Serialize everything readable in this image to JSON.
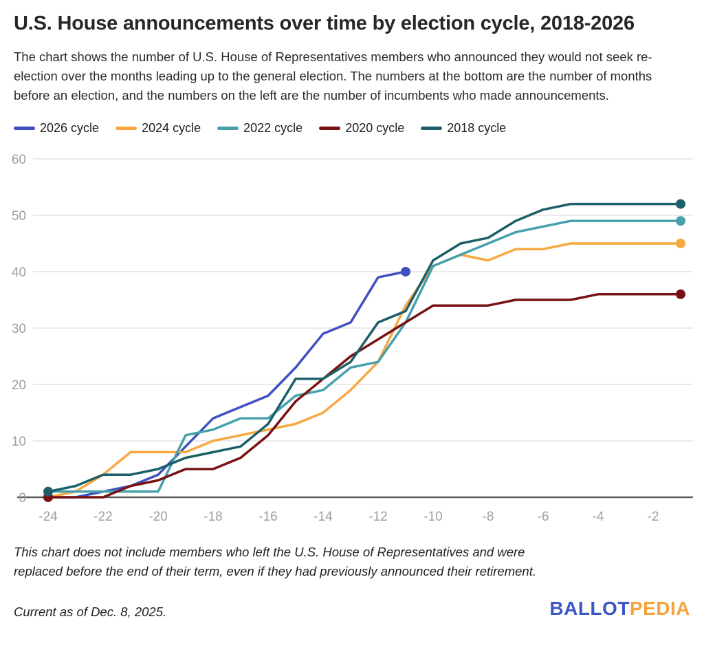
{
  "title": "U.S. House announcements over time by election cycle, 2018-2026",
  "subtitle": "The chart shows the number of U.S. House of Representatives members who announced they would not seek re-election over the months leading up to the general election. The numbers at the bottom are the number of months before an election, and the numbers on the left are the number of incumbents who made announcements.",
  "footnote": "This chart does not include members who left the U.S. House of Representatives and were replaced before the end of their term, even if they had previously announced their retirement.",
  "current_as_of": "Current as of Dec. 8, 2025.",
  "logo": {
    "ballot": "BALLOT",
    "pedia": "PEDIA",
    "ballot_color": "#3d56c6",
    "pedia_color": "#f6a33b"
  },
  "colors": {
    "grid_line": "#e4e4e4",
    "axis_line": "#5a5a5a",
    "tick_text": "#9e9e9e"
  },
  "chart_data": {
    "type": "line",
    "title": "U.S. House announcements over time by election cycle, 2018-2026",
    "xlabel": "",
    "ylabel": "",
    "grid": true,
    "legend_position": "top",
    "xlim": [
      -25,
      0
    ],
    "ylim": [
      0,
      60
    ],
    "x_ticks": [
      -24,
      -22,
      -20,
      -18,
      -16,
      -14,
      -12,
      -10,
      -8,
      -6,
      -4,
      -2
    ],
    "y_ticks": [
      0,
      10,
      20,
      30,
      40,
      50,
      60
    ],
    "series": [
      {
        "name": "2026 cycle",
        "color": "#3f51c1",
        "start_dot": false,
        "end_dot": true,
        "x": [
          -24,
          -23,
          -22,
          -21,
          -20,
          -19,
          -18,
          -17,
          -16,
          -15,
          -14,
          -13,
          -12,
          -11
        ],
        "values": [
          0,
          0,
          1,
          2,
          4,
          9,
          14,
          16,
          18,
          23,
          29,
          31,
          39,
          40
        ]
      },
      {
        "name": "2024 cycle",
        "color": "#f7a841",
        "start_dot": false,
        "end_dot": true,
        "x": [
          -24,
          -23,
          -22,
          -21,
          -20,
          -19,
          -18,
          -17,
          -16,
          -15,
          -14,
          -13,
          -12,
          -11,
          -10,
          -9,
          -8,
          -7,
          -6,
          -5,
          -4,
          -3,
          -2,
          -1
        ],
        "values": [
          0,
          1,
          4,
          8,
          8,
          8,
          10,
          11,
          12,
          13,
          15,
          19,
          24,
          34,
          41,
          43,
          42,
          44,
          44,
          45,
          45,
          45,
          45,
          45
        ]
      },
      {
        "name": "2022 cycle",
        "color": "#46a1aa",
        "start_dot": false,
        "end_dot": true,
        "x": [
          -24,
          -23,
          -22,
          -21,
          -20,
          -19,
          -18,
          -17,
          -16,
          -15,
          -14,
          -13,
          -12,
          -11,
          -10,
          -9,
          -8,
          -7,
          -6,
          -5,
          -4,
          -3,
          -2,
          -1
        ],
        "values": [
          1,
          1,
          1,
          1,
          1,
          11,
          12,
          14,
          14,
          18,
          19,
          23,
          24,
          31,
          41,
          43,
          45,
          47,
          48,
          49,
          49,
          49,
          49,
          49
        ]
      },
      {
        "name": "2020 cycle",
        "color": "#771114",
        "start_dot": true,
        "end_dot": true,
        "x": [
          -24,
          -23,
          -22,
          -21,
          -20,
          -19,
          -18,
          -17,
          -16,
          -15,
          -14,
          -13,
          -12,
          -11,
          -10,
          -9,
          -8,
          -7,
          -6,
          -5,
          -4,
          -3,
          -2,
          -1
        ],
        "values": [
          0,
          0,
          0,
          2,
          3,
          5,
          5,
          7,
          11,
          17,
          21,
          25,
          28,
          31,
          34,
          34,
          34,
          35,
          35,
          35,
          36,
          36,
          36,
          36
        ]
      },
      {
        "name": "2018 cycle",
        "color": "#1c5f68",
        "start_dot": true,
        "end_dot": true,
        "x": [
          -24,
          -23,
          -22,
          -21,
          -20,
          -19,
          -18,
          -17,
          -16,
          -15,
          -14,
          -13,
          -12,
          -11,
          -10,
          -9,
          -8,
          -7,
          -6,
          -5,
          -4,
          -3,
          -2,
          -1
        ],
        "values": [
          1,
          2,
          4,
          4,
          5,
          7,
          8,
          9,
          13,
          21,
          21,
          24,
          31,
          33,
          42,
          45,
          46,
          49,
          51,
          52,
          52,
          52,
          52,
          52
        ]
      }
    ]
  }
}
